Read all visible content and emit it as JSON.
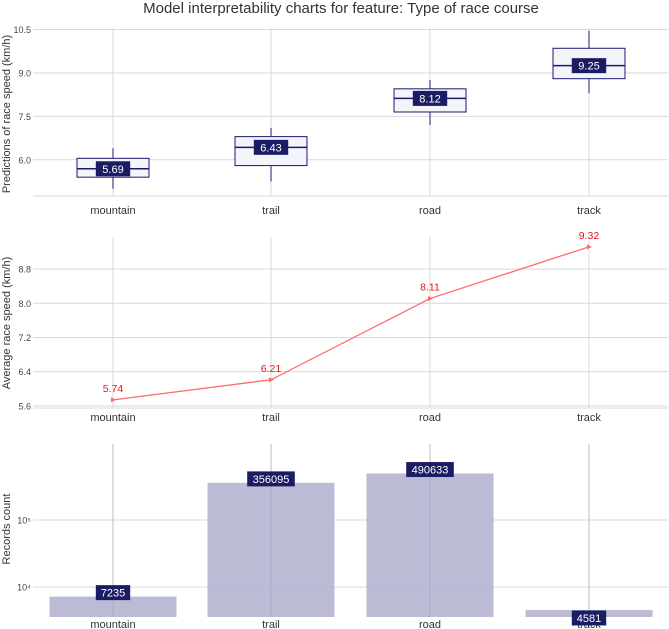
{
  "title": "Model interpretability charts for feature: Type of race course",
  "colors": {
    "box_edge": "#1a1a6e",
    "box_fill": "#f4f4fb",
    "label_bg": "#1c1c64",
    "line": "#ff6b6b",
    "line_label": "#ee1111",
    "bar": "#b7b7d4",
    "grid": "#d9d9d9"
  },
  "chart_data": [
    {
      "type": "box",
      "ylabel": "Predictions of race speed (km/h)",
      "categories": [
        "mountain",
        "trail",
        "road",
        "track"
      ],
      "ylim": [
        4.75,
        10.55
      ],
      "yticks": [
        6.0,
        7.5,
        9.0,
        10.5
      ],
      "ytick_labels": [
        "6.0",
        "7.5",
        "9.0",
        "10.5"
      ],
      "boxes": [
        {
          "category": "mountain",
          "whisker_low": 5.0,
          "q1": 5.4,
          "median": 5.69,
          "q3": 6.05,
          "whisker_high": 6.4,
          "label": "5.69"
        },
        {
          "category": "trail",
          "whisker_low": 5.25,
          "q1": 5.8,
          "median": 6.43,
          "q3": 6.8,
          "whisker_high": 7.1,
          "label": "6.43"
        },
        {
          "category": "road",
          "whisker_low": 7.2,
          "q1": 7.65,
          "median": 8.12,
          "q3": 8.45,
          "whisker_high": 8.75,
          "label": "8.12"
        },
        {
          "category": "track",
          "whisker_low": 8.3,
          "q1": 8.8,
          "median": 9.25,
          "q3": 9.85,
          "whisker_high": 10.45,
          "label": "9.25"
        }
      ],
      "grid": true
    },
    {
      "type": "line",
      "ylabel": "Average race speed (km/h)",
      "categories": [
        "mountain",
        "trail",
        "road",
        "track"
      ],
      "values": [
        5.74,
        6.21,
        8.11,
        9.32
      ],
      "value_labels": [
        "5.74",
        "6.21",
        "8.11",
        "9.32"
      ],
      "ylim": [
        5.55,
        9.55
      ],
      "yticks": [
        5.6,
        6.4,
        7.2,
        8.0,
        8.8
      ],
      "ytick_labels": [
        "5.6",
        "6.4",
        "7.2",
        "8.0",
        "8.8"
      ],
      "grid": true
    },
    {
      "type": "bar",
      "ylabel": "Records count",
      "yscale": "log",
      "categories": [
        "mountain",
        "trail",
        "road",
        "track"
      ],
      "values": [
        7235,
        356095,
        490633,
        4581
      ],
      "value_labels": [
        "7235",
        "356095",
        "490633",
        "4581"
      ],
      "ylim": [
        3600,
        1350000
      ],
      "yticks": [
        10000,
        100000
      ],
      "ytick_labels": [
        "10⁴",
        "10⁵"
      ],
      "grid": true
    }
  ]
}
